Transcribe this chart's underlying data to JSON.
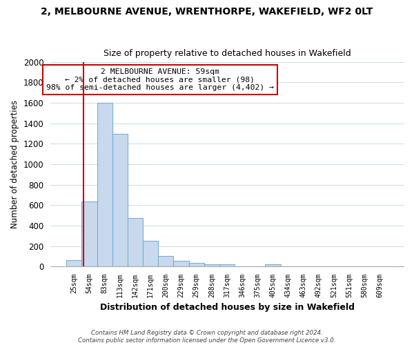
{
  "title": "2, MELBOURNE AVENUE, WRENTHORPE, WAKEFIELD, WF2 0LT",
  "subtitle": "Size of property relative to detached houses in Wakefield",
  "xlabel": "Distribution of detached houses by size in Wakefield",
  "ylabel": "Number of detached properties",
  "bar_labels": [
    "25sqm",
    "54sqm",
    "83sqm",
    "113sqm",
    "142sqm",
    "171sqm",
    "200sqm",
    "229sqm",
    "259sqm",
    "288sqm",
    "317sqm",
    "346sqm",
    "375sqm",
    "405sqm",
    "434sqm",
    "463sqm",
    "492sqm",
    "521sqm",
    "551sqm",
    "580sqm",
    "609sqm"
  ],
  "bar_values": [
    65,
    635,
    1600,
    1300,
    475,
    250,
    105,
    55,
    35,
    20,
    20,
    0,
    0,
    20,
    0,
    0,
    0,
    0,
    0,
    0,
    0
  ],
  "bar_color": "#c8d9ee",
  "bar_edge_color": "#7aaed4",
  "vline_color": "#cc0000",
  "vline_pos": 0.6,
  "ylim": [
    0,
    2000
  ],
  "yticks": [
    0,
    200,
    400,
    600,
    800,
    1000,
    1200,
    1400,
    1600,
    1800,
    2000
  ],
  "annotation_text": "2 MELBOURNE AVENUE: 59sqm\n← 2% of detached houses are smaller (98)\n98% of semi-detached houses are larger (4,402) →",
  "annotation_box_color": "#ffffff",
  "annotation_box_edge": "#cc0000",
  "footer1": "Contains HM Land Registry data © Crown copyright and database right 2024.",
  "footer2": "Contains public sector information licensed under the Open Government Licence v3.0.",
  "bg_color": "#ffffff",
  "grid_color": "#ccd9e8"
}
